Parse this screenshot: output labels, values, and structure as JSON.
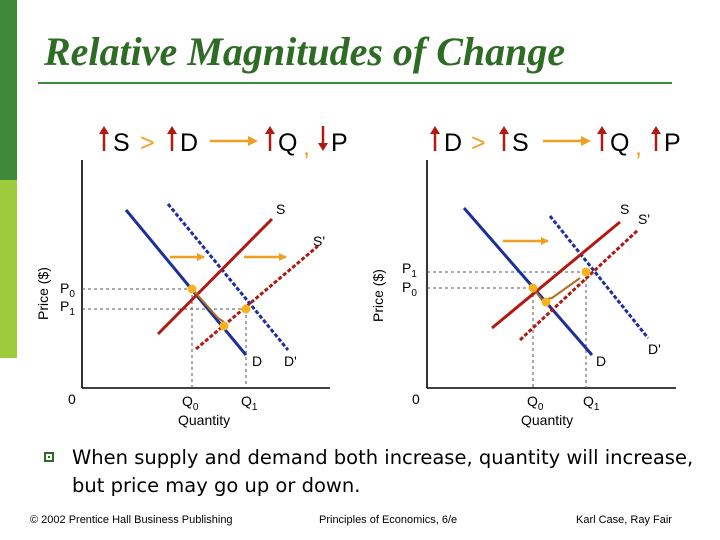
{
  "slide": {
    "title": "Relative Magnitudes of Change",
    "bullet_text": "When supply and demand both increase, quantity will increase, but price may go up or down.",
    "footer": {
      "left": "© 2002 Prentice Hall Business Publishing",
      "center": "Principles of Economics, 6/e",
      "right": "Karl Case, Ray Fair"
    },
    "colors": {
      "supply": "#b01a12",
      "demand": "#1c2f9c",
      "arrow": "#f0a020",
      "equilibrium": "#f5b21e",
      "sidebar_dark": "#3f8a3a",
      "sidebar_light": "#9ccc3c"
    }
  },
  "left_diagram": {
    "header": {
      "s": "S",
      "gt": ">",
      "d": "D",
      "q": "Q",
      "comma": ",",
      "p": "P"
    },
    "y_axis_label": "Price ($)",
    "x_axis_label": "Quantity",
    "origin": "0",
    "p0": "P",
    "p0_sub": "0",
    "p1": "P",
    "p1_sub": "1",
    "q0": "Q",
    "q0_sub": "0",
    "q1": "Q",
    "q1_sub": "1",
    "supply_label": "S",
    "supply_shift_label": "S'",
    "demand_label": "D",
    "demand_shift_label": "D'"
  },
  "right_diagram": {
    "header": {
      "d": "D",
      "gt": ">",
      "s": "S",
      "q": "Q",
      "comma": ",",
      "p": "P"
    },
    "y_axis_label": "Price ($)",
    "x_axis_label": "Quantity",
    "origin": "0",
    "p1": "P",
    "p1_sub": "1",
    "p0": "P",
    "p0_sub": "0",
    "q0": "Q",
    "q0_sub": "0",
    "q1": "Q",
    "q1_sub": "1",
    "supply_label": "S",
    "supply_shift_label": "S'",
    "demand_label": "D",
    "demand_shift_label": "D'"
  }
}
